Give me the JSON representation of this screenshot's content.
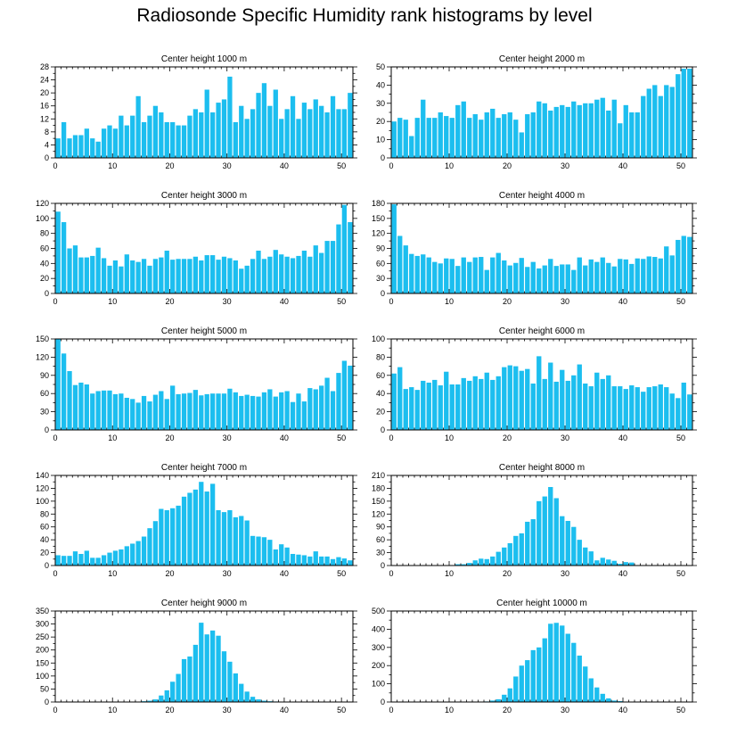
{
  "title": "Radiosonde Specific Humidity rank histograms by level",
  "colors": {
    "bar": "#1cbeef",
    "axis": "#000000"
  },
  "chart_data": [
    {
      "type": "bar",
      "title": "Center height 1000 m",
      "x": [
        0,
        1,
        2,
        3,
        4,
        5,
        6,
        7,
        8,
        9,
        10,
        11,
        12,
        13,
        14,
        15,
        16,
        17,
        18,
        19,
        20,
        21,
        22,
        23,
        24,
        25,
        26,
        27,
        28,
        29,
        30,
        31,
        32,
        33,
        34,
        35,
        36,
        37,
        38,
        39,
        40,
        41,
        42,
        43,
        44,
        45,
        46,
        47,
        48,
        49,
        50,
        51
      ],
      "xlim": [
        0,
        52
      ],
      "xticks": [
        0,
        10,
        20,
        30,
        40,
        50
      ],
      "ylim": [
        0,
        28
      ],
      "yticks": [
        0,
        4,
        8,
        12,
        16,
        20,
        24,
        28
      ],
      "values": [
        6,
        11,
        6,
        7,
        7,
        9,
        6,
        5,
        9,
        10,
        9,
        13,
        10,
        13,
        19,
        11,
        13,
        16,
        14,
        11,
        11,
        10,
        10,
        13,
        15,
        14,
        21,
        14,
        17,
        18,
        25,
        11,
        16,
        12,
        15,
        20,
        23,
        16,
        21,
        12,
        15,
        19,
        12,
        17,
        15,
        18,
        16,
        14,
        19,
        15,
        15,
        20
      ]
    },
    {
      "type": "bar",
      "title": "Center height 2000 m",
      "x": [
        0,
        1,
        2,
        3,
        4,
        5,
        6,
        7,
        8,
        9,
        10,
        11,
        12,
        13,
        14,
        15,
        16,
        17,
        18,
        19,
        20,
        21,
        22,
        23,
        24,
        25,
        26,
        27,
        28,
        29,
        30,
        31,
        32,
        33,
        34,
        35,
        36,
        37,
        38,
        39,
        40,
        41,
        42,
        43,
        44,
        45,
        46,
        47,
        48,
        49,
        50,
        51
      ],
      "xlim": [
        0,
        52
      ],
      "xticks": [
        0,
        10,
        20,
        30,
        40,
        50
      ],
      "ylim": [
        0,
        50
      ],
      "yticks": [
        0,
        10,
        20,
        30,
        40,
        50
      ],
      "values": [
        20,
        22,
        21,
        12,
        22,
        32,
        22,
        22,
        25,
        23,
        22,
        29,
        31,
        22,
        24,
        21,
        25,
        27,
        22,
        24,
        25,
        21,
        14,
        24,
        25,
        31,
        30,
        26,
        28,
        29,
        28,
        31,
        29,
        30,
        30,
        32,
        33,
        26,
        32,
        19,
        29,
        25,
        25,
        34,
        38,
        40,
        34,
        40,
        39,
        46,
        49,
        49
      ]
    },
    {
      "type": "bar",
      "title": "Center height 3000 m",
      "x": [
        0,
        1,
        2,
        3,
        4,
        5,
        6,
        7,
        8,
        9,
        10,
        11,
        12,
        13,
        14,
        15,
        16,
        17,
        18,
        19,
        20,
        21,
        22,
        23,
        24,
        25,
        26,
        27,
        28,
        29,
        30,
        31,
        32,
        33,
        34,
        35,
        36,
        37,
        38,
        39,
        40,
        41,
        42,
        43,
        44,
        45,
        46,
        47,
        48,
        49,
        50,
        51
      ],
      "xlim": [
        0,
        52
      ],
      "xticks": [
        0,
        10,
        20,
        30,
        40,
        50
      ],
      "ylim": [
        0,
        120
      ],
      "yticks": [
        0,
        20,
        40,
        60,
        80,
        100,
        120
      ],
      "values": [
        109,
        95,
        60,
        64,
        48,
        48,
        50,
        61,
        47,
        37,
        44,
        36,
        52,
        44,
        42,
        46,
        37,
        46,
        48,
        57,
        45,
        46,
        46,
        46,
        49,
        44,
        51,
        51,
        45,
        49,
        47,
        44,
        33,
        37,
        46,
        57,
        46,
        49,
        58,
        52,
        49,
        47,
        50,
        57,
        49,
        64,
        54,
        70,
        70,
        92,
        118,
        95
      ]
    },
    {
      "type": "bar",
      "title": "Center height 4000 m",
      "x": [
        0,
        1,
        2,
        3,
        4,
        5,
        6,
        7,
        8,
        9,
        10,
        11,
        12,
        13,
        14,
        15,
        16,
        17,
        18,
        19,
        20,
        21,
        22,
        23,
        24,
        25,
        26,
        27,
        28,
        29,
        30,
        31,
        32,
        33,
        34,
        35,
        36,
        37,
        38,
        39,
        40,
        41,
        42,
        43,
        44,
        45,
        46,
        47,
        48,
        49,
        50,
        51
      ],
      "xlim": [
        0,
        52
      ],
      "xticks": [
        0,
        10,
        20,
        30,
        40,
        50
      ],
      "ylim": [
        0,
        180
      ],
      "yticks": [
        0,
        30,
        60,
        90,
        120,
        150,
        180
      ],
      "values": [
        178,
        115,
        96,
        79,
        75,
        78,
        72,
        63,
        60,
        70,
        69,
        55,
        72,
        63,
        72,
        73,
        47,
        72,
        81,
        66,
        56,
        61,
        71,
        53,
        63,
        50,
        56,
        69,
        55,
        58,
        58,
        47,
        72,
        56,
        68,
        63,
        72,
        61,
        54,
        69,
        68,
        59,
        70,
        69,
        74,
        73,
        70,
        94,
        76,
        107,
        115,
        113
      ]
    },
    {
      "type": "bar",
      "title": "Center height 5000 m",
      "x": [
        0,
        1,
        2,
        3,
        4,
        5,
        6,
        7,
        8,
        9,
        10,
        11,
        12,
        13,
        14,
        15,
        16,
        17,
        18,
        19,
        20,
        21,
        22,
        23,
        24,
        25,
        26,
        27,
        28,
        29,
        30,
        31,
        32,
        33,
        34,
        35,
        36,
        37,
        38,
        39,
        40,
        41,
        42,
        43,
        44,
        45,
        46,
        47,
        48,
        49,
        50,
        51
      ],
      "xlim": [
        0,
        52
      ],
      "xticks": [
        0,
        10,
        20,
        30,
        40,
        50
      ],
      "ylim": [
        0,
        150
      ],
      "yticks": [
        0,
        30,
        60,
        90,
        120,
        150
      ],
      "values": [
        150,
        126,
        97,
        74,
        78,
        75,
        60,
        64,
        65,
        65,
        59,
        60,
        53,
        51,
        45,
        56,
        47,
        58,
        64,
        51,
        73,
        59,
        60,
        61,
        66,
        57,
        59,
        60,
        60,
        60,
        68,
        62,
        56,
        58,
        56,
        55,
        62,
        67,
        55,
        62,
        64,
        46,
        60,
        47,
        69,
        67,
        73,
        86,
        64,
        94,
        114,
        106
      ]
    },
    {
      "type": "bar",
      "title": "Center height 6000 m",
      "x": [
        0,
        1,
        2,
        3,
        4,
        5,
        6,
        7,
        8,
        9,
        10,
        11,
        12,
        13,
        14,
        15,
        16,
        17,
        18,
        19,
        20,
        21,
        22,
        23,
        24,
        25,
        26,
        27,
        28,
        29,
        30,
        31,
        32,
        33,
        34,
        35,
        36,
        37,
        38,
        39,
        40,
        41,
        42,
        43,
        44,
        45,
        46,
        47,
        48,
        49,
        50,
        51
      ],
      "xlim": [
        0,
        52
      ],
      "xticks": [
        0,
        10,
        20,
        30,
        40,
        50
      ],
      "ylim": [
        0,
        100
      ],
      "yticks": [
        0,
        20,
        40,
        60,
        80,
        100
      ],
      "values": [
        62,
        69,
        45,
        47,
        44,
        54,
        52,
        55,
        49,
        64,
        50,
        50,
        57,
        54,
        59,
        56,
        63,
        55,
        59,
        69,
        71,
        70,
        65,
        67,
        51,
        81,
        56,
        74,
        53,
        66,
        54,
        60,
        72,
        51,
        48,
        63,
        56,
        60,
        48,
        48,
        45,
        49,
        47,
        42,
        47,
        48,
        50,
        47,
        40,
        35,
        52,
        39
      ]
    },
    {
      "type": "bar",
      "title": "Center height 7000 m",
      "x": [
        0,
        1,
        2,
        3,
        4,
        5,
        6,
        7,
        8,
        9,
        10,
        11,
        12,
        13,
        14,
        15,
        16,
        17,
        18,
        19,
        20,
        21,
        22,
        23,
        24,
        25,
        26,
        27,
        28,
        29,
        30,
        31,
        32,
        33,
        34,
        35,
        36,
        37,
        38,
        39,
        40,
        41,
        42,
        43,
        44,
        45,
        46,
        47,
        48,
        49,
        50,
        51
      ],
      "xlim": [
        0,
        52
      ],
      "xticks": [
        0,
        10,
        20,
        30,
        40,
        50
      ],
      "ylim": [
        0,
        140
      ],
      "yticks": [
        0,
        20,
        40,
        60,
        80,
        100,
        120,
        140
      ],
      "values": [
        16,
        15,
        15,
        22,
        18,
        23,
        12,
        12,
        16,
        20,
        23,
        25,
        30,
        34,
        38,
        45,
        58,
        69,
        88,
        86,
        89,
        93,
        107,
        113,
        118,
        130,
        115,
        127,
        86,
        83,
        86,
        75,
        77,
        70,
        46,
        45,
        44,
        40,
        25,
        33,
        28,
        18,
        17,
        16,
        14,
        22,
        14,
        14,
        10,
        13,
        11,
        8
      ]
    },
    {
      "type": "bar",
      "title": "Center height 8000 m",
      "x": [
        0,
        1,
        2,
        3,
        4,
        5,
        6,
        7,
        8,
        9,
        10,
        11,
        12,
        13,
        14,
        15,
        16,
        17,
        18,
        19,
        20,
        21,
        22,
        23,
        24,
        25,
        26,
        27,
        28,
        29,
        30,
        31,
        32,
        33,
        34,
        35,
        36,
        37,
        38,
        39,
        40,
        41,
        42,
        43,
        44,
        45,
        46,
        47,
        48,
        49,
        50,
        51
      ],
      "xlim": [
        0,
        52
      ],
      "xticks": [
        0,
        10,
        20,
        30,
        40,
        50
      ],
      "ylim": [
        0,
        210
      ],
      "yticks": [
        0,
        30,
        60,
        90,
        120,
        150,
        180,
        210
      ],
      "values": [
        0,
        0,
        0,
        0,
        0,
        0,
        0,
        0,
        0,
        0,
        0,
        3,
        3,
        6,
        12,
        16,
        15,
        21,
        32,
        42,
        52,
        69,
        75,
        102,
        108,
        150,
        161,
        183,
        157,
        115,
        104,
        90,
        60,
        42,
        33,
        12,
        18,
        14,
        11,
        4,
        8,
        7,
        0,
        0,
        0,
        0,
        0,
        0,
        0,
        0,
        0,
        0
      ]
    },
    {
      "type": "bar",
      "title": "Center height 9000 m",
      "x": [
        0,
        1,
        2,
        3,
        4,
        5,
        6,
        7,
        8,
        9,
        10,
        11,
        12,
        13,
        14,
        15,
        16,
        17,
        18,
        19,
        20,
        21,
        22,
        23,
        24,
        25,
        26,
        27,
        28,
        29,
        30,
        31,
        32,
        33,
        34,
        35,
        36,
        37,
        38,
        39,
        40,
        41,
        42,
        43,
        44,
        45,
        46,
        47,
        48,
        49,
        50,
        51
      ],
      "xlim": [
        0,
        52
      ],
      "xticks": [
        0,
        10,
        20,
        30,
        40,
        50
      ],
      "ylim": [
        0,
        350
      ],
      "yticks": [
        0,
        50,
        100,
        150,
        200,
        250,
        300,
        350
      ],
      "values": [
        0,
        0,
        0,
        0,
        0,
        0,
        0,
        0,
        0,
        0,
        0,
        0,
        0,
        0,
        0,
        3,
        5,
        10,
        25,
        45,
        78,
        108,
        165,
        175,
        220,
        305,
        260,
        275,
        255,
        195,
        155,
        110,
        70,
        40,
        20,
        10,
        5,
        3,
        2,
        0,
        0,
        0,
        0,
        0,
        0,
        0,
        0,
        0,
        0,
        0,
        0,
        0
      ]
    },
    {
      "type": "bar",
      "title": "Center height 10000 m",
      "x": [
        0,
        1,
        2,
        3,
        4,
        5,
        6,
        7,
        8,
        9,
        10,
        11,
        12,
        13,
        14,
        15,
        16,
        17,
        18,
        19,
        20,
        21,
        22,
        23,
        24,
        25,
        26,
        27,
        28,
        29,
        30,
        31,
        32,
        33,
        34,
        35,
        36,
        37,
        38,
        39,
        40,
        41,
        42,
        43,
        44,
        45,
        46,
        47,
        48,
        49,
        50,
        51
      ],
      "xlim": [
        0,
        52
      ],
      "xticks": [
        0,
        10,
        20,
        30,
        40,
        50
      ],
      "ylim": [
        0,
        500
      ],
      "yticks": [
        0,
        100,
        200,
        300,
        400,
        500
      ],
      "values": [
        0,
        0,
        0,
        0,
        0,
        0,
        0,
        0,
        0,
        0,
        0,
        0,
        0,
        0,
        0,
        0,
        3,
        8,
        15,
        40,
        75,
        140,
        200,
        230,
        285,
        300,
        350,
        430,
        435,
        420,
        375,
        325,
        255,
        195,
        130,
        80,
        45,
        20,
        8,
        5,
        2,
        0,
        0,
        0,
        0,
        0,
        0,
        0,
        0,
        0,
        0,
        0
      ]
    }
  ]
}
